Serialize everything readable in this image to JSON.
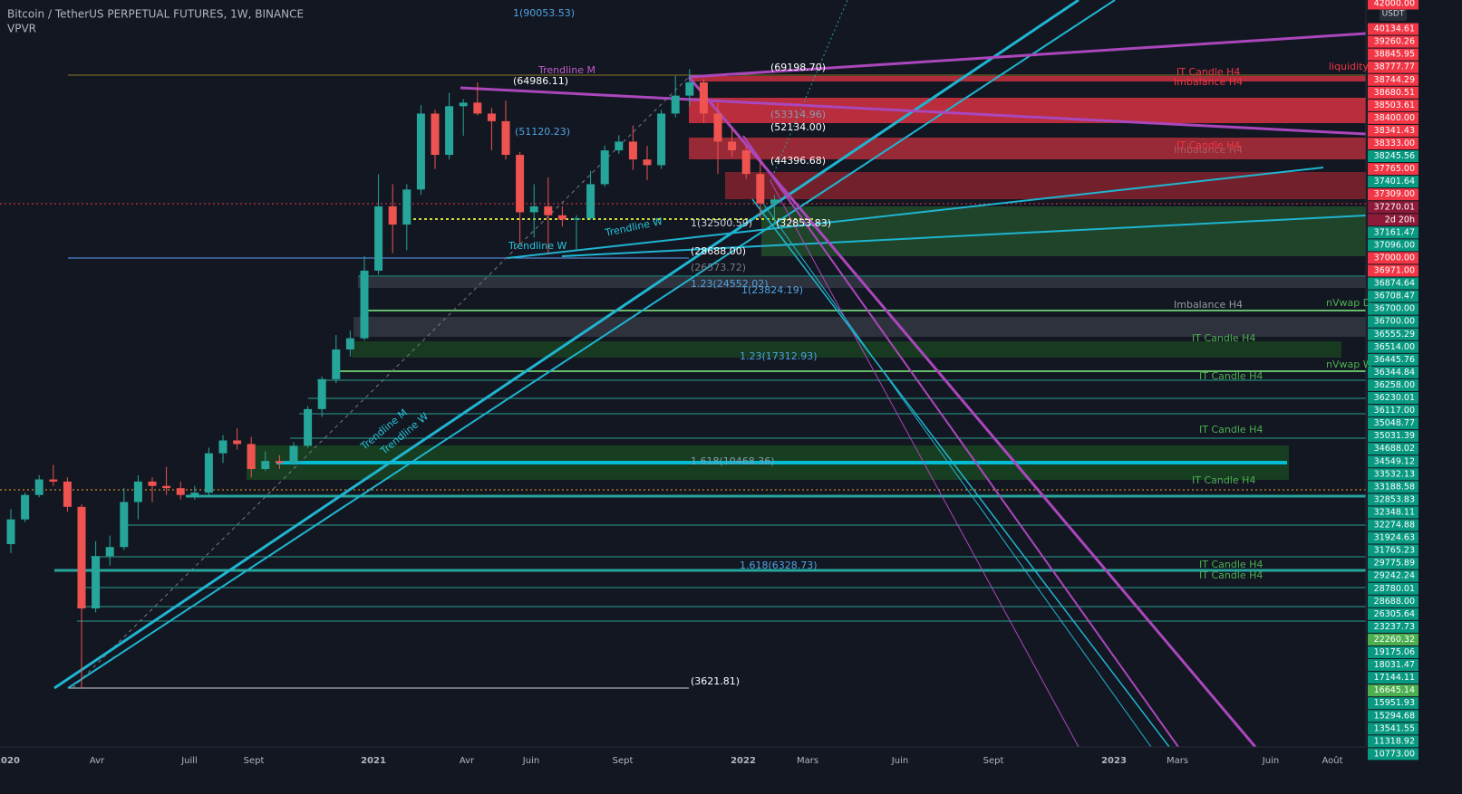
{
  "header": {
    "title": "Bitcoin / TetherUS PERPETUAL FUTURES, 1W, BINANCE",
    "indicator": "VPVR",
    "currency": "USDT"
  },
  "chart_data": {
    "type": "candlestick",
    "log_scale": true,
    "ylim": [
      2740,
      96200
    ],
    "up_color": "#26a69a",
    "down_color": "#ef5350",
    "categories": [
      null,
      null,
      null,
      null,
      null,
      null,
      null,
      null,
      null,
      null,
      null,
      null,
      null,
      null,
      null,
      null,
      null,
      null,
      null,
      null,
      null,
      null,
      null,
      null,
      null,
      null,
      null,
      null,
      null,
      null,
      null,
      null,
      null,
      null,
      null,
      null,
      null,
      null,
      null,
      null,
      null,
      null,
      null,
      null,
      null,
      null,
      null,
      null,
      null,
      null,
      null,
      null,
      null,
      null,
      null
    ],
    "open": [
      7200,
      8100,
      9100,
      9800,
      9700,
      8600,
      5300,
      6800,
      7100,
      8800,
      9700,
      9500,
      9400,
      9100,
      9200,
      11100,
      11800,
      11600,
      10300,
      10700,
      10600,
      11500,
      13700,
      15800,
      18200,
      19200,
      26500,
      36000,
      33000,
      39000,
      56000,
      46000,
      58000,
      59000,
      56000,
      54000,
      46000,
      35000,
      36000,
      34500,
      33800,
      34000,
      40000,
      47000,
      49000,
      45000,
      43800,
      56000,
      61000,
      65000,
      56000,
      49000,
      47000,
      42000,
      36500
    ],
    "high": [
      8500,
      9200,
      10000,
      10500,
      9900,
      8700,
      7300,
      7500,
      9400,
      10000,
      9900,
      10400,
      9700,
      9500,
      11400,
      12100,
      12500,
      12000,
      11200,
      11000,
      11700,
      13900,
      16000,
      19500,
      19900,
      28400,
      41900,
      40000,
      40000,
      58300,
      57000,
      61800,
      60000,
      64900,
      57500,
      59500,
      46600,
      40000,
      41300,
      36000,
      34500,
      42600,
      48100,
      50500,
      52900,
      48000,
      57000,
      67000,
      69199,
      66000,
      59000,
      52000,
      48000,
      44500,
      38000
    ],
    "low": [
      6900,
      8000,
      9000,
      9500,
      8400,
      3622,
      5200,
      6500,
      7000,
      8100,
      8800,
      9100,
      8900,
      8900,
      9100,
      10600,
      11300,
      9900,
      10200,
      10300,
      10500,
      11400,
      13200,
      15500,
      17600,
      19000,
      26000,
      28800,
      29200,
      38000,
      43000,
      45000,
      50400,
      55500,
      47000,
      45000,
      30000,
      31000,
      28800,
      32700,
      29300,
      33800,
      39500,
      46200,
      42800,
      40800,
      43000,
      55000,
      58000,
      53500,
      42000,
      45500,
      41000,
      34000,
      32900
    ],
    "close": [
      8100,
      9100,
      9800,
      9700,
      8600,
      5300,
      6800,
      7100,
      8800,
      9700,
      9500,
      9400,
      9100,
      9200,
      11100,
      11800,
      11600,
      10300,
      10700,
      10600,
      11500,
      13700,
      15800,
      18200,
      19200,
      26500,
      36000,
      33000,
      39000,
      56000,
      46000,
      58000,
      59000,
      56000,
      54000,
      46000,
      35000,
      36000,
      34500,
      33800,
      34000,
      40000,
      47000,
      49000,
      45000,
      43800,
      56000,
      61000,
      65000,
      56000,
      49000,
      47000,
      42000,
      36500,
      37200
    ]
  },
  "annotations": [
    "1(90053.53)",
    "(64986.11)",
    "(69198.70)",
    "(53314.96)",
    "(52134.00)",
    "(51120.23)",
    "(44396.68)",
    "1(32500.59)",
    "(32853.83)",
    "(28688.00)",
    "(26573.72)",
    "1.23(24552.02)",
    "1(23824.19)",
    "1.23(17312.93)",
    "1.618(10468.36)",
    "1.618(6328.73)",
    "(3621.81)",
    "Trendline M",
    "Trendline W",
    "Trendline W",
    "Trendline M",
    "Trendline W",
    "IT Candle H4",
    "Imbalance H4",
    "IT Candle H4",
    "Imbalance H4",
    "Imbalance H4",
    "IT Candle H4",
    "IT Candle H4",
    "IT Candle H4",
    "IT Candle H4",
    "IT Candle H4",
    "IT Candle H4",
    "liquidity",
    "nVwap D",
    "nVwap W"
  ],
  "time_axis": [
    "2020",
    "Avr",
    "Juill",
    "Sept",
    "2021",
    "Avr",
    "Juin",
    "Sept",
    "2022",
    "Mars",
    "Juin",
    "Sept",
    "2023",
    "Mars",
    "Juin",
    "Août"
  ],
  "price_labels": [
    {
      "label": "42000.00",
      "color": "#f23645"
    },
    {
      "label": "40134.61",
      "color": "#f23645"
    },
    {
      "label": "39260.26",
      "color": "#f23645"
    },
    {
      "label": "38845.95",
      "color": "#f23645"
    },
    {
      "label": "38777.77",
      "color": "#f23645"
    },
    {
      "label": "38744.29",
      "color": "#f23645"
    },
    {
      "label": "38680.51",
      "color": "#f23645"
    },
    {
      "label": "38503.61",
      "color": "#f23645"
    },
    {
      "label": "38400.00",
      "color": "#f23645"
    },
    {
      "label": "38341.43",
      "color": "#f23645"
    },
    {
      "label": "38333.00",
      "color": "#f23645"
    },
    {
      "label": "38245.56",
      "color": "#089981"
    },
    {
      "label": "37765.00",
      "color": "#f23645"
    },
    {
      "label": "37401.64",
      "color": "#089981"
    },
    {
      "label": "37309.00",
      "color": "#f23645"
    },
    {
      "label": "37270.01",
      "color": "#8e1a3a"
    },
    {
      "label": "2d 20h",
      "color": "#8e1a3a"
    },
    {
      "label": "37161.47",
      "color": "#089981"
    },
    {
      "label": "37096.00",
      "color": "#089981"
    },
    {
      "label": "37000.00",
      "color": "#f23645"
    },
    {
      "label": "36971.00",
      "color": "#f23645"
    },
    {
      "label": "36874.64",
      "color": "#089981"
    },
    {
      "label": "36708.47",
      "color": "#089981"
    },
    {
      "label": "36700.00",
      "color": "#089981"
    },
    {
      "label": "36700.00",
      "color": "#089981"
    },
    {
      "label": "36555.29",
      "color": "#089981"
    },
    {
      "label": "36514.00",
      "color": "#089981"
    },
    {
      "label": "36445.76",
      "color": "#089981"
    },
    {
      "label": "36344.84",
      "color": "#089981"
    },
    {
      "label": "36258.00",
      "color": "#089981"
    },
    {
      "label": "36230.01",
      "color": "#089981"
    },
    {
      "label": "36117.00",
      "color": "#089981"
    },
    {
      "label": "35048.77",
      "color": "#089981"
    },
    {
      "label": "35031.39",
      "color": "#089981"
    },
    {
      "label": "34688.02",
      "color": "#089981"
    },
    {
      "label": "34549.12",
      "color": "#089981"
    },
    {
      "label": "33532.13",
      "color": "#089981"
    },
    {
      "label": "33188.58",
      "color": "#089981"
    },
    {
      "label": "32853.83",
      "color": "#089981"
    },
    {
      "label": "32348.11",
      "color": "#089981"
    },
    {
      "label": "32274.88",
      "color": "#089981"
    },
    {
      "label": "31924.63",
      "color": "#089981"
    },
    {
      "label": "31765.23",
      "color": "#089981"
    },
    {
      "label": "29775.89",
      "color": "#089981"
    },
    {
      "label": "29242.24",
      "color": "#089981"
    },
    {
      "label": "28780.01",
      "color": "#089981"
    },
    {
      "label": "28688.00",
      "color": "#089981"
    },
    {
      "label": "26305.64",
      "color": "#089981"
    },
    {
      "label": "23237.73",
      "color": "#089981"
    },
    {
      "label": "22260.32",
      "color": "#4caf50"
    },
    {
      "label": "19175.06",
      "color": "#089981"
    },
    {
      "label": "18031.47",
      "color": "#089981"
    },
    {
      "label": "17144.11",
      "color": "#089981"
    },
    {
      "label": "16645.14",
      "color": "#4caf50"
    },
    {
      "label": "15951.93",
      "color": "#089981"
    },
    {
      "label": "15294.68",
      "color": "#089981"
    },
    {
      "label": "13541.55",
      "color": "#089981"
    },
    {
      "label": "11318.92",
      "color": "#089981"
    },
    {
      "label": "10773.00",
      "color": "#089981"
    }
  ]
}
